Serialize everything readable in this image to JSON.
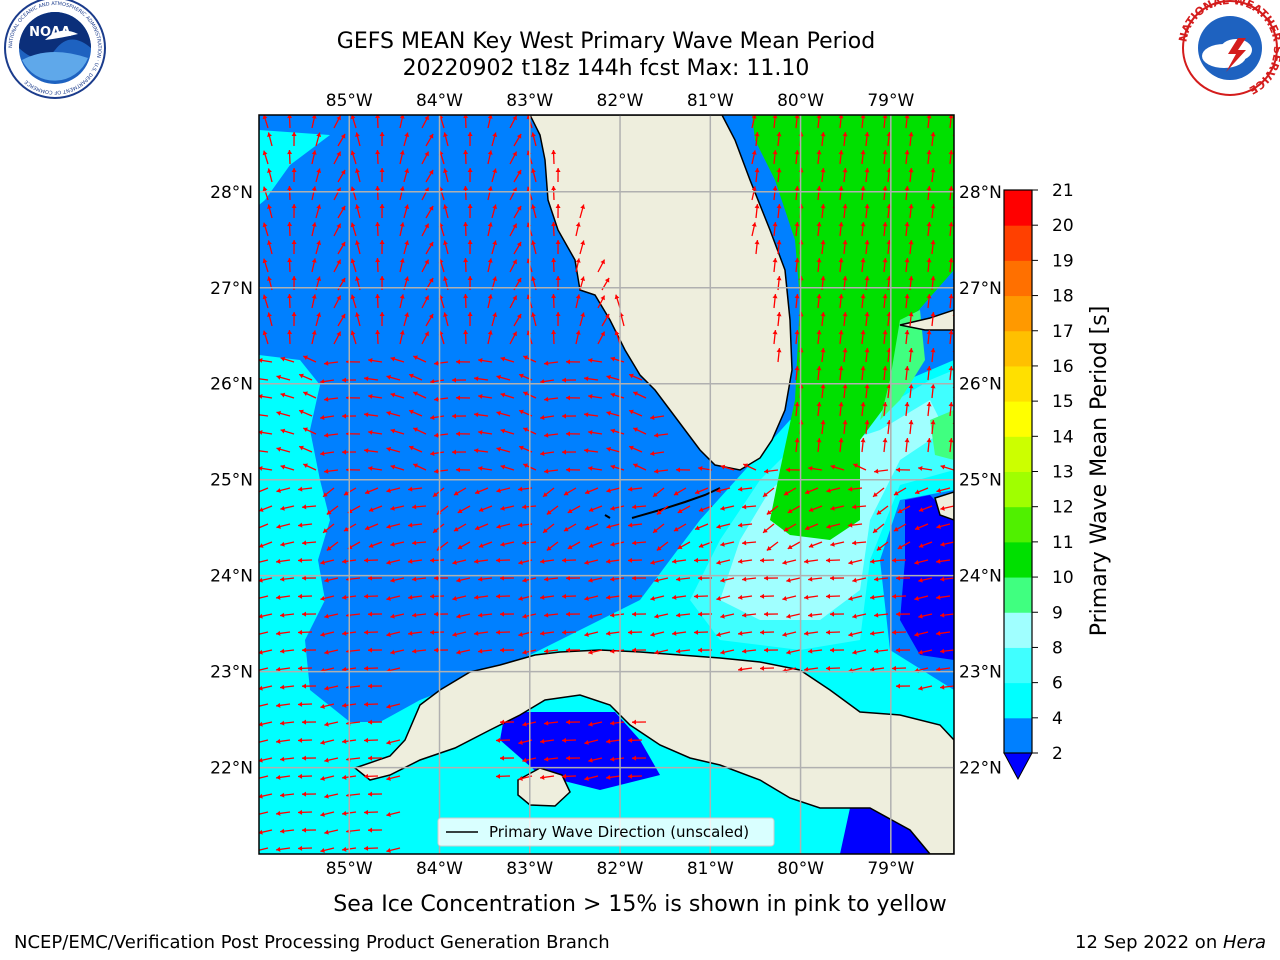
{
  "title": {
    "line1": "GEFS MEAN Key West Primary Wave Mean Period",
    "line2": "20220902 t18z 144h fcst   Max: 11.10"
  },
  "map": {
    "lon_range": [
      -86,
      -78.3
    ],
    "lat_range": [
      21.1,
      28.8
    ],
    "lon_tick_labels": [
      "85°W",
      "84°W",
      "83°W",
      "82°W",
      "81°W",
      "80°W",
      "79°W"
    ],
    "lat_tick_labels": [
      "28°N",
      "27°N",
      "26°N",
      "25°N",
      "24°N",
      "23°N",
      "22°N"
    ],
    "grid": true,
    "ocean_color_default": "#0080ff",
    "land_color": "#eeeedd"
  },
  "legend": {
    "label": "Primary Wave Direction (unscaled)",
    "placement": "bottom-center"
  },
  "colorbar": {
    "label": "Primary Wave Mean Period [s]",
    "ticks": [
      "2",
      "4",
      "6",
      "8",
      "9",
      "10",
      "11",
      "12",
      "13",
      "14",
      "15",
      "16",
      "17",
      "18",
      "19",
      "20",
      "21"
    ],
    "colors": [
      "#0000ff",
      "#0080ff",
      "#00ffff",
      "#40ffff",
      "#a0ffff",
      "#40ff80",
      "#00e000",
      "#50f000",
      "#a0ff00",
      "#ccff00",
      "#ffff00",
      "#ffe000",
      "#ffc000",
      "#ff9900",
      "#ff7000",
      "#ff4000",
      "#ff0000"
    ],
    "extend": "min"
  },
  "caption": "Sea Ice Concentration > 15% is shown in pink to yellow",
  "footer": {
    "left": "NCEP/EMC/Verification Post Processing Product Generation Branch",
    "right_date": "12 Sep 2022 on ",
    "right_host": "Hera"
  },
  "logos": {
    "left": {
      "icon": "noaa-logo",
      "text": "NOAA",
      "ring_text": "NATIONAL OCEANIC AND ATMOSPHERIC ADMINISTRATION · U.S. DEPARTMENT OF COMMERCE"
    },
    "right": {
      "icon": "nws-logo",
      "ring_text": "NATIONAL WEATHER SERVICE"
    }
  }
}
